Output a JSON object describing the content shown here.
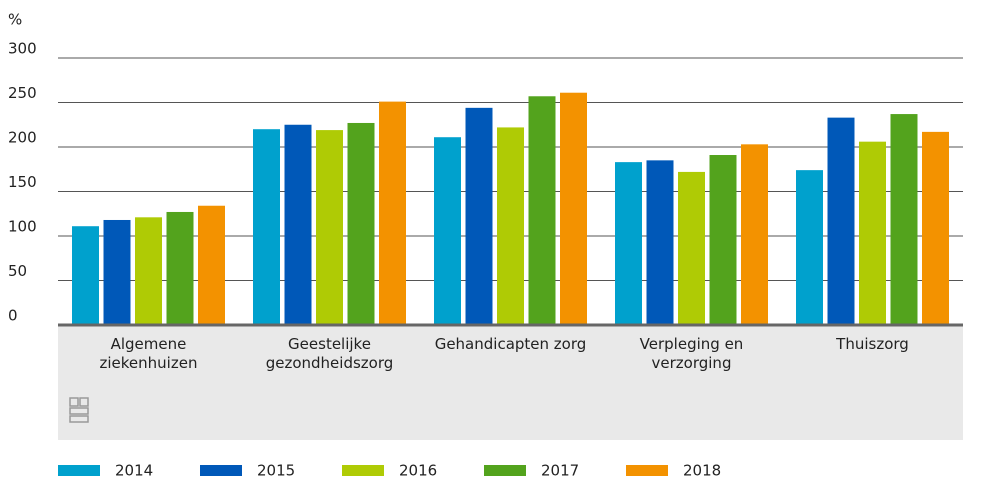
{
  "chart_data": {
    "type": "bar",
    "y_label": "%",
    "categories": [
      "Algemene ziekenhuizen",
      "Geestelijke gezondheidszorg",
      "Gehandicapten zorg",
      "Verpleging en verzorging",
      "Thuiszorg"
    ],
    "series": [
      {
        "name": "2014",
        "color": "#00a1cd",
        "values": [
          111,
          220,
          211,
          183,
          174
        ]
      },
      {
        "name": "2015",
        "color": "#0058b8",
        "values": [
          118,
          225,
          244,
          185,
          233
        ]
      },
      {
        "name": "2016",
        "color": "#afcb05",
        "values": [
          121,
          219,
          222,
          172,
          206
        ]
      },
      {
        "name": "2017",
        "color": "#53a31d",
        "values": [
          127,
          227,
          257,
          191,
          237
        ]
      },
      {
        "name": "2018",
        "color": "#f39200",
        "values": [
          134,
          251,
          261,
          203,
          217
        ]
      }
    ],
    "ylim": [
      0,
      300
    ],
    "yticks": [
      0,
      50,
      100,
      150,
      200,
      250,
      300
    ],
    "grid": true,
    "legend": "bottom"
  }
}
